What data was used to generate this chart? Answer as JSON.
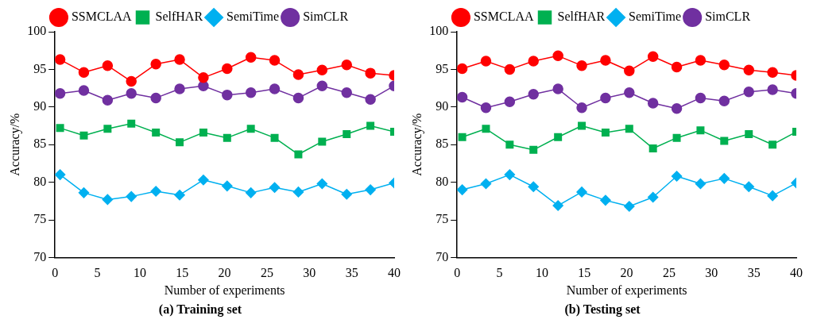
{
  "chart_data": [
    {
      "type": "line",
      "title": "(a) Training set",
      "xlabel": "Number of experiments",
      "ylabel": "Accuracy/%",
      "xlim": [
        0,
        40
      ],
      "xticks": [
        0,
        5,
        10,
        15,
        20,
        25,
        30,
        35,
        40
      ],
      "ylim": [
        70,
        100
      ],
      "yticks": [
        70,
        75,
        80,
        85,
        90,
        95,
        100
      ],
      "grid": false,
      "legend": "top",
      "line_style": "solid",
      "x": [
        0.6,
        3.4,
        6.2,
        9.0,
        11.9,
        14.7,
        17.5,
        20.3,
        23.1,
        25.9,
        28.7,
        31.5,
        34.4,
        37.2,
        40
      ],
      "series": [
        {
          "name": "SSMCLAA",
          "color": "#ff0000",
          "marker": "circle",
          "values": [
            96.3,
            94.6,
            95.5,
            93.4,
            95.7,
            96.3,
            93.9,
            95.1,
            96.6,
            96.2,
            94.3,
            94.9,
            95.6,
            94.5,
            94.2
          ]
        },
        {
          "name": "SelfHAR",
          "color": "#00b050",
          "marker": "square",
          "values": [
            87.2,
            86.2,
            87.1,
            87.8,
            86.6,
            85.3,
            86.6,
            85.9,
            87.1,
            85.9,
            83.7,
            85.4,
            86.4,
            87.5,
            86.7
          ]
        },
        {
          "name": "SemiTime",
          "color": "#00b0f0",
          "marker": "diamond",
          "values": [
            81.0,
            78.6,
            77.7,
            78.1,
            78.8,
            78.3,
            80.3,
            79.5,
            78.6,
            79.3,
            78.7,
            79.8,
            78.4,
            79.0,
            79.9
          ]
        },
        {
          "name": "SimCLR",
          "color": "#7030a0",
          "marker": "circle",
          "values": [
            91.8,
            92.2,
            90.9,
            91.8,
            91.2,
            92.4,
            92.8,
            91.6,
            91.9,
            92.4,
            91.2,
            92.8,
            91.9,
            91.0,
            92.8
          ]
        }
      ]
    },
    {
      "type": "line",
      "title": "(b) Testing set",
      "xlabel": "Number of experiments",
      "ylabel": "Accuracy/%",
      "xlim": [
        0,
        40
      ],
      "xticks": [
        0,
        5,
        10,
        15,
        20,
        25,
        30,
        35,
        40
      ],
      "ylim": [
        70,
        100
      ],
      "yticks": [
        70,
        75,
        80,
        85,
        90,
        95,
        100
      ],
      "grid": false,
      "legend": "top",
      "line_style": "solid",
      "x": [
        0.6,
        3.4,
        6.2,
        9.0,
        11.9,
        14.7,
        17.5,
        20.3,
        23.1,
        25.9,
        28.7,
        31.5,
        34.4,
        37.2,
        40
      ],
      "series": [
        {
          "name": "SSMCLAA",
          "color": "#ff0000",
          "marker": "circle",
          "values": [
            95.1,
            96.1,
            95.0,
            96.1,
            96.8,
            95.5,
            96.2,
            94.8,
            96.7,
            95.3,
            96.2,
            95.6,
            94.9,
            94.6,
            94.2
          ]
        },
        {
          "name": "SelfHAR",
          "color": "#00b050",
          "marker": "square",
          "values": [
            86.0,
            87.1,
            85.0,
            84.3,
            86.0,
            87.5,
            86.6,
            87.1,
            84.5,
            85.9,
            86.9,
            85.5,
            86.4,
            85.0,
            86.7
          ]
        },
        {
          "name": "SemiTime",
          "color": "#00b0f0",
          "marker": "diamond",
          "values": [
            79.0,
            79.8,
            81.0,
            79.4,
            76.9,
            78.7,
            77.6,
            76.8,
            78.0,
            80.8,
            79.8,
            80.5,
            79.4,
            78.2,
            79.9
          ]
        },
        {
          "name": "SimCLR",
          "color": "#7030a0",
          "marker": "circle",
          "values": [
            91.3,
            89.9,
            90.7,
            91.7,
            92.4,
            89.9,
            91.2,
            91.9,
            90.5,
            89.8,
            91.2,
            90.8,
            92.0,
            92.3,
            91.8
          ]
        }
      ]
    }
  ]
}
